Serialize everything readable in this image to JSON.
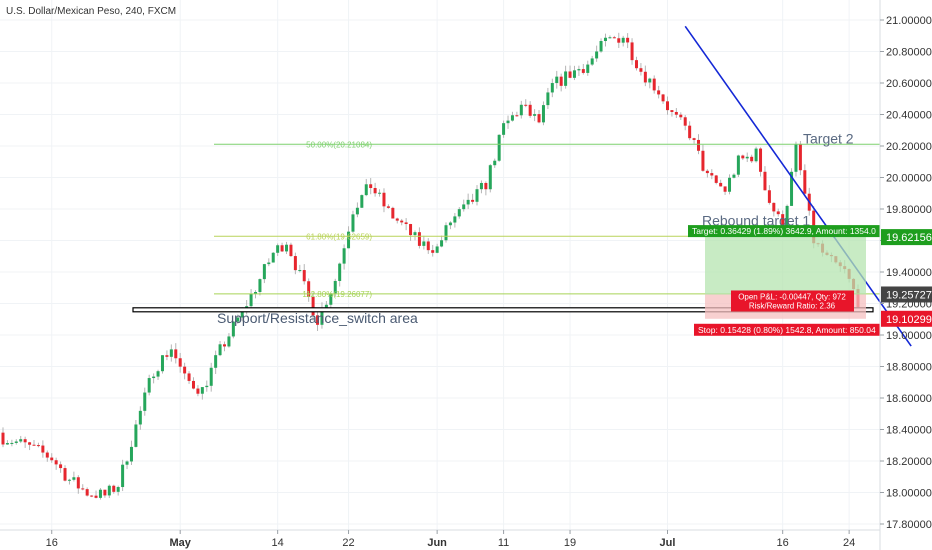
{
  "header": {
    "title": "U.S. Dollar/Mexican Peso, 240, FXCM"
  },
  "chart_data": {
    "type": "candlestick",
    "title": "U.S. Dollar/Mexican Peso, 240, FXCM",
    "ylim": [
      17.72,
      21.12
    ],
    "y_ticks": [
      "21.00000",
      "20.80000",
      "20.60000",
      "20.40000",
      "20.20000",
      "20.00000",
      "19.80000",
      "19.60000",
      "19.40000",
      "19.20000",
      "19.00000",
      "18.80000",
      "18.60000",
      "18.40000",
      "18.20000",
      "18.00000",
      "17.80000"
    ],
    "x_ticks": [
      "16",
      "May",
      "14",
      "22",
      "Jun",
      "11",
      "19",
      "Jul",
      "16",
      "24"
    ],
    "bold_x_ticks": [
      "May",
      "Jun",
      "Jul"
    ],
    "close_path": [
      [
        0,
        18.35
      ],
      [
        5,
        18.3
      ],
      [
        11,
        18.22
      ],
      [
        15,
        18.08
      ],
      [
        19,
        18.0
      ],
      [
        23,
        17.98
      ],
      [
        26,
        18.05
      ],
      [
        30,
        18.42
      ],
      [
        34,
        18.78
      ],
      [
        38,
        18.92
      ],
      [
        41,
        18.72
      ],
      [
        45,
        18.65
      ],
      [
        49,
        18.9
      ],
      [
        53,
        19.1
      ],
      [
        57,
        19.3
      ],
      [
        61,
        19.52
      ],
      [
        64,
        19.6
      ],
      [
        68,
        19.3
      ],
      [
        71,
        19.1
      ],
      [
        75,
        19.35
      ],
      [
        79,
        19.8
      ],
      [
        83,
        19.95
      ],
      [
        87,
        19.78
      ],
      [
        90,
        19.7
      ],
      [
        94,
        19.58
      ],
      [
        98,
        19.55
      ],
      [
        101,
        19.72
      ],
      [
        105,
        19.82
      ],
      [
        109,
        19.96
      ],
      [
        113,
        20.32
      ],
      [
        117,
        20.45
      ],
      [
        121,
        20.35
      ],
      [
        124,
        20.58
      ],
      [
        128,
        20.66
      ],
      [
        132,
        20.72
      ],
      [
        136,
        20.86
      ],
      [
        140,
        20.9
      ],
      [
        144,
        20.68
      ],
      [
        148,
        20.55
      ],
      [
        151,
        20.4
      ],
      [
        155,
        20.28
      ],
      [
        159,
        20.0
      ],
      [
        163,
        19.92
      ],
      [
        166,
        20.1
      ],
      [
        170,
        20.15
      ],
      [
        173,
        19.85
      ],
      [
        176,
        19.68
      ],
      [
        179,
        20.18
      ],
      [
        183,
        19.6
      ],
      [
        186,
        19.48
      ],
      [
        190,
        19.4
      ],
      [
        193,
        19.22
      ]
    ],
    "levels": [
      {
        "label": "50.00%(20.21084)",
        "value": 20.21084,
        "color": "#7fd16f"
      },
      {
        "label": "61.80%(19.62659)",
        "value": 19.62659,
        "color": "#b9d35a"
      },
      {
        "label": "112.80%(19.26077)",
        "value": 19.26077,
        "color": "#a6d356"
      }
    ],
    "support_resistance": {
      "value": 19.16,
      "label": "Support/Resistance_switch area"
    },
    "trendline": {
      "start": [
        154,
        20.96
      ],
      "end": [
        205,
        18.93
      ],
      "color": "#1428d6"
    },
    "annotations": [
      {
        "text": "Target 2",
        "value": 20.24
      },
      {
        "text": "Rebound target 1",
        "value": 19.72
      }
    ],
    "position": {
      "target_price": 19.62156,
      "entry_price": 19.25727,
      "stop_price": 19.10299,
      "target_text": "Target: 0.36429 (1.89%) 3642.9, Amount: 1354.0",
      "pnl_text": "Open P&L: -0.00447, Qty: 972",
      "rr_text": "Risk/Reward Ratio: 2.36",
      "stop_text": "Stop: 0.15428 (0.80%) 1542.8, Amount: 850.04"
    },
    "price_labels": [
      {
        "text": "19.62156",
        "value": 19.62156,
        "color": "#1e9e1e"
      },
      {
        "text": "19.25727",
        "value": 19.25727,
        "color": "#444444"
      },
      {
        "text": "19.10299",
        "value": 19.10299,
        "color": "#e8152a"
      }
    ],
    "colors": {
      "up": "#26a65b",
      "down": "#e6262e",
      "grid": "#f0f3f6"
    }
  }
}
